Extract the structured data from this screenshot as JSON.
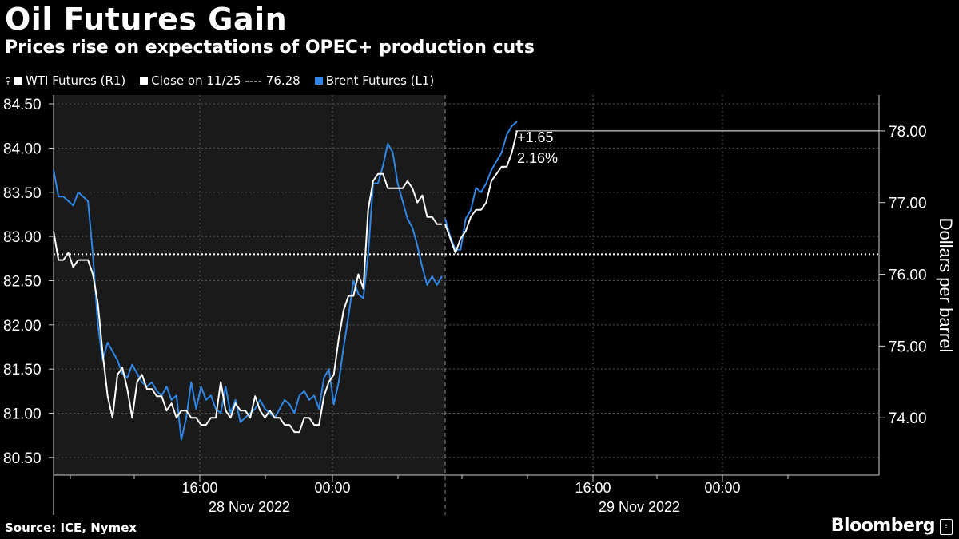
{
  "header": {
    "title": "Oil Futures Gain",
    "subtitle": "Prices rise on expectations of OPEC+ production cuts"
  },
  "legend": {
    "wti": "WTI Futures (R1)",
    "close": "Close on 11/25 ---- 76.28",
    "brent": "Brent Futures (L1)"
  },
  "footer": {
    "source": "Source: ICE, Nymex",
    "brand": "Bloomberg"
  },
  "colors": {
    "background": "#000000",
    "wti": "#ffffff",
    "brent": "#2f86e6",
    "shade": "#1a1a1a",
    "grid": "#555555"
  },
  "chart_data": {
    "type": "line",
    "title": "Oil Futures Gain",
    "subtitle": "Prices rise on expectations of OPEC+ production cuts",
    "ylabel_right": "Dollars per barrel",
    "left_axis": {
      "ylim": [
        80.3,
        84.6
      ],
      "ticks": [
        "84.50",
        "84.00",
        "83.50",
        "83.00",
        "82.50",
        "82.00",
        "81.50",
        "81.00",
        "80.50"
      ]
    },
    "right_axis": {
      "ylim": [
        73.2,
        78.5
      ],
      "ticks": [
        "78.00",
        "77.00",
        "76.00",
        "75.00",
        "74.00"
      ]
    },
    "x_tick_labels": [
      "16:00",
      "00:00",
      "16:00",
      "00:00"
    ],
    "date_labels": [
      "28 Nov 2022",
      "29 Nov 2022"
    ],
    "reference_line": {
      "label": "Close on 11/25",
      "value": 76.28,
      "axis": "right"
    },
    "annotation": {
      "change": "+1.65",
      "percent": "2.16%"
    },
    "shaded_session": "28 Nov 2022",
    "series": [
      {
        "name": "WTI Futures (R1)",
        "axis": "right",
        "color": "#ffffff",
        "segments": [
          [
            76.6,
            76.2,
            76.2,
            76.3,
            76.1,
            76.2,
            76.2,
            76.2,
            76.0,
            75.6,
            74.9,
            74.3,
            74.0,
            74.6,
            74.7,
            74.4,
            74.0,
            74.5,
            74.6,
            74.4,
            74.4,
            74.3,
            74.3,
            74.1,
            74.2,
            74.0,
            74.1,
            74.1,
            74.0,
            74.0,
            73.9,
            73.9,
            74.0,
            74.0,
            74.5,
            74.1,
            74.0,
            74.2,
            74.1,
            74.1,
            74.0,
            74.3,
            74.1,
            74.0,
            74.1,
            74.0,
            74.0,
            73.9,
            73.9,
            73.8,
            73.8,
            74.0,
            74.0,
            73.9,
            73.9,
            74.3,
            74.5,
            74.6,
            75.1,
            75.5,
            75.7,
            75.7,
            76.0,
            75.8,
            76.9,
            77.3,
            77.4,
            77.4,
            77.2,
            77.2,
            77.2,
            77.2,
            77.3,
            77.2,
            77.0,
            77.1,
            76.8,
            76.8,
            76.7,
            76.7
          ],
          [
            76.7,
            76.5,
            76.3,
            76.5,
            76.6,
            76.8,
            76.9,
            76.9,
            77.0,
            77.3,
            77.4,
            77.5,
            77.5,
            77.7,
            78.0
          ]
        ]
      },
      {
        "name": "Brent Futures (L1)",
        "axis": "left",
        "color": "#2f86e6",
        "segments": [
          [
            83.75,
            83.45,
            83.45,
            83.4,
            83.35,
            83.5,
            83.45,
            83.4,
            82.8,
            82.0,
            81.6,
            81.8,
            81.7,
            81.6,
            81.45,
            81.4,
            81.55,
            81.45,
            81.35,
            81.3,
            81.35,
            81.25,
            81.2,
            81.3,
            81.15,
            81.2,
            80.7,
            80.95,
            81.35,
            81.05,
            81.3,
            81.15,
            81.2,
            81.05,
            81.0,
            81.3,
            81.0,
            81.15,
            80.9,
            80.95,
            81.0,
            81.05,
            81.15,
            81.05,
            81.0,
            80.95,
            81.05,
            81.15,
            81.1,
            81.0,
            81.2,
            81.25,
            81.15,
            81.2,
            81.05,
            81.4,
            81.5,
            81.1,
            81.35,
            81.75,
            82.1,
            82.5,
            82.35,
            82.3,
            82.8,
            83.6,
            83.6,
            83.8,
            84.05,
            83.95,
            83.6,
            83.4,
            83.2,
            83.1,
            82.9,
            82.65,
            82.45,
            82.55,
            82.45,
            82.55
          ],
          [
            83.2,
            83.0,
            82.85,
            82.85,
            83.2,
            83.3,
            83.55,
            83.5,
            83.6,
            83.75,
            83.85,
            83.95,
            84.15,
            84.25,
            84.3
          ]
        ]
      }
    ]
  }
}
